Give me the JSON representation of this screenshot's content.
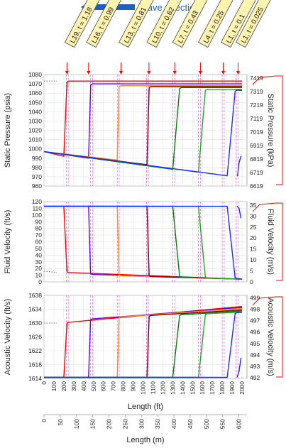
{
  "header": {
    "wave_direction": "Wave direction"
  },
  "colors": {
    "curve_colors": [
      "#ff0000",
      "#b00060",
      "#ff8c1a",
      "#7f0000",
      "#22aa22",
      "#008000",
      "#1f2bff",
      "#6a00d6",
      "#ff00ff"
    ],
    "guide_color": "#ff66ff",
    "label_bg": "#fff3b0",
    "arrow_color": "#1f5fbf"
  },
  "chart_data": {
    "type": "line",
    "labels": [
      {
        "text": "L19, t = 1.18",
        "x_ft": 232
      },
      {
        "text": "L16, t = 0.99",
        "x_ft": 450
      },
      {
        "text": "L13, t = 0.81",
        "x_ft": 778
      },
      {
        "text": "L10, t = 0.62",
        "x_ft": 1060
      },
      {
        "text": "L7, t = 0.43",
        "x_ft": 1320
      },
      {
        "text": "L4, t = 0.25",
        "x_ft": 1580
      },
      {
        "text": "L1, t = 0.1",
        "x_ft": 1810
      },
      {
        "text": "L1, t = 0.025",
        "x_ft": 1960
      }
    ],
    "guides_ft": [
      225,
      245,
      470,
      490,
      740,
      760,
      1035,
      1055,
      1300,
      1320,
      1560,
      1580,
      1800,
      1820,
      1940,
      1960
    ],
    "x_bottom": {
      "label": "Length (ft)",
      "ticks": [
        0,
        100,
        200,
        300,
        400,
        500,
        600,
        700,
        800,
        900,
        1000,
        1100,
        1200,
        1300,
        1400,
        1500,
        1600,
        1700,
        1800,
        1900,
        2000
      ],
      "range": [
        0,
        2050
      ]
    },
    "x_bottom2": {
      "label": "Length (m)",
      "ticks": [
        0,
        50,
        100,
        150,
        200,
        250,
        300,
        350,
        400,
        450,
        500,
        550,
        600
      ],
      "range": [
        0,
        625
      ]
    },
    "panels": [
      {
        "ylabel_left": "Static Pressure (psia)",
        "ylabel_right": "Static Pressure (kPa)",
        "ylim": [
          960,
          1080
        ],
        "yticks_left": [
          960,
          970,
          980,
          990,
          1000,
          1010,
          1020,
          1030,
          1040,
          1050,
          1060,
          1070,
          1080
        ],
        "yticks_right": [
          "6619",
          "6719",
          "6819",
          "6919",
          "7019",
          "7119",
          "7219",
          "7319",
          "7419"
        ],
        "yticks_right_vals": [
          960,
          974.5,
          989,
          1003.5,
          1018,
          1032.5,
          1047,
          1061.5,
          1076
        ],
        "series": [
          {
            "color_idx": 0,
            "x": [
              0,
              200,
              232,
              245,
              2000
            ],
            "y": [
              997,
              992,
              1072,
              1073,
              1073
            ]
          },
          {
            "color_idx": 7,
            "x": [
              0,
              450,
              472,
              490,
              2000
            ],
            "y": [
              997,
              990,
              1069,
              1070,
              1070
            ]
          },
          {
            "color_idx": 2,
            "x": [
              0,
              740,
              758,
              780,
              2000
            ],
            "y": [
              997,
              988,
              1067,
              1068,
              1068
            ]
          },
          {
            "color_idx": 3,
            "x": [
              0,
              1040,
              1062,
              1080,
              2000
            ],
            "y": [
              997,
              983,
              1066,
              1067,
              1067
            ]
          },
          {
            "color_idx": 5,
            "x": [
              0,
              1300,
              1370,
              1390,
              2000
            ],
            "y": [
              997,
              978,
              1065,
              1066,
              1066
            ]
          },
          {
            "color_idx": 4,
            "x": [
              0,
              1560,
              1630,
              1650,
              2000
            ],
            "y": [
              997,
              975,
              1063,
              1064,
              1064
            ]
          },
          {
            "color_idx": 6,
            "x": [
              0,
              1850,
              1930,
              1945,
              1950,
              2000
            ],
            "y": [
              997,
              971,
              1062,
              1063,
              1063,
              1063
            ]
          },
          {
            "color_idx": 6,
            "x": [
              1950,
              1955,
              1970,
              1990
            ],
            "y": [
              971,
              971,
              985,
              992
            ]
          }
        ],
        "dotted": {
          "x": [
            0,
            130
          ],
          "y": [
            1073,
            1073
          ]
        }
      },
      {
        "ylabel_left": "Fluid Velocity (ft/s)",
        "ylabel_right": "Fluid Velocity (m/s)",
        "ylim": [
          0,
          120
        ],
        "yticks_left": [
          0,
          10,
          20,
          30,
          40,
          50,
          60,
          70,
          80,
          90,
          100,
          110,
          120
        ],
        "yticks_right": [
          "0",
          "5",
          "10",
          "15",
          "20",
          "25",
          "30",
          "35"
        ],
        "yticks_right_vals": [
          0,
          16.4,
          32.8,
          49.2,
          65.6,
          82,
          98.4,
          114.8
        ],
        "series": [
          {
            "color_idx": 0,
            "x": [
              0,
              200,
              232,
              245,
              2000
            ],
            "y": [
              113,
              113,
              15,
              14,
              4
            ]
          },
          {
            "color_idx": 7,
            "x": [
              0,
              450,
              470,
              490,
              2000
            ],
            "y": [
              113,
              113,
              12,
              11,
              4
            ]
          },
          {
            "color_idx": 2,
            "x": [
              0,
              740,
              758,
              780,
              2000
            ],
            "y": [
              113,
              113,
              10,
              9,
              4
            ]
          },
          {
            "color_idx": 3,
            "x": [
              0,
              1040,
              1062,
              1080,
              2000
            ],
            "y": [
              113,
              113,
              9,
              8,
              4
            ]
          },
          {
            "color_idx": 5,
            "x": [
              0,
              1300,
              1370,
              1390,
              2000
            ],
            "y": [
              113,
              113,
              8,
              7,
              4
            ]
          },
          {
            "color_idx": 4,
            "x": [
              0,
              1560,
              1630,
              1650,
              2000
            ],
            "y": [
              113,
              113,
              7,
              6,
              4
            ]
          },
          {
            "color_idx": 6,
            "x": [
              0,
              1850,
              1930,
              1950,
              2000
            ],
            "y": [
              113,
              113,
              6,
              5,
              4
            ]
          },
          {
            "color_idx": 6,
            "x": [
              1950,
              1970,
              1990
            ],
            "y": [
              113,
              110,
              95
            ]
          }
        ],
        "dotted": {
          "x": [
            0,
            130
          ],
          "y": [
            16,
            14
          ]
        }
      },
      {
        "ylabel_left": "Acoustic Velocity (ft/s)",
        "ylabel_right": "Acoustic Velocity (m/s)",
        "ylim": [
          1614,
          1638
        ],
        "yticks_left": [
          1614,
          1618,
          1622,
          1626,
          1630,
          1634,
          1638
        ],
        "yticks_right": [
          "492",
          "493",
          "494",
          "495",
          "496",
          "497",
          "498",
          "499"
        ],
        "yticks_right_vals": [
          1614.2,
          1617.5,
          1620.8,
          1624.1,
          1627.4,
          1630.7,
          1634,
          1637.3
        ],
        "series": [
          {
            "color_idx": 0,
            "x": [
              0,
              200,
              232,
              245,
              2000
            ],
            "y": [
              1614.3,
              1614.3,
              1630,
              1630.2,
              1634.8
            ]
          },
          {
            "color_idx": 7,
            "x": [
              0,
              450,
              470,
              490,
              2000
            ],
            "y": [
              1614.3,
              1614.3,
              1631,
              1631.2,
              1634.5
            ]
          },
          {
            "color_idx": 2,
            "x": [
              0,
              740,
              758,
              780,
              2000
            ],
            "y": [
              1614.3,
              1614.3,
              1631.6,
              1631.8,
              1634.2
            ]
          },
          {
            "color_idx": 3,
            "x": [
              0,
              1040,
              1062,
              1080,
              2000
            ],
            "y": [
              1614.3,
              1614.3,
              1632,
              1632.2,
              1633.8
            ]
          },
          {
            "color_idx": 5,
            "x": [
              0,
              1300,
              1370,
              1390,
              2000
            ],
            "y": [
              1614.3,
              1614.3,
              1632.2,
              1632.4,
              1633.5
            ]
          },
          {
            "color_idx": 4,
            "x": [
              0,
              1560,
              1630,
              1650,
              2000
            ],
            "y": [
              1614.3,
              1614.3,
              1632.5,
              1632.7,
              1633.2
            ]
          },
          {
            "color_idx": 6,
            "x": [
              0,
              1850,
              1930,
              1950,
              2000
            ],
            "y": [
              1614.3,
              1614.3,
              1632.8,
              1633,
              1633.1
            ]
          },
          {
            "color_idx": 6,
            "x": [
              1950,
              1970,
              1990
            ],
            "y": [
              1614.3,
              1616,
              1620
            ]
          }
        ],
        "dotted": {
          "x": [
            0,
            130
          ],
          "y": [
            1630,
            1630
          ]
        }
      }
    ]
  }
}
